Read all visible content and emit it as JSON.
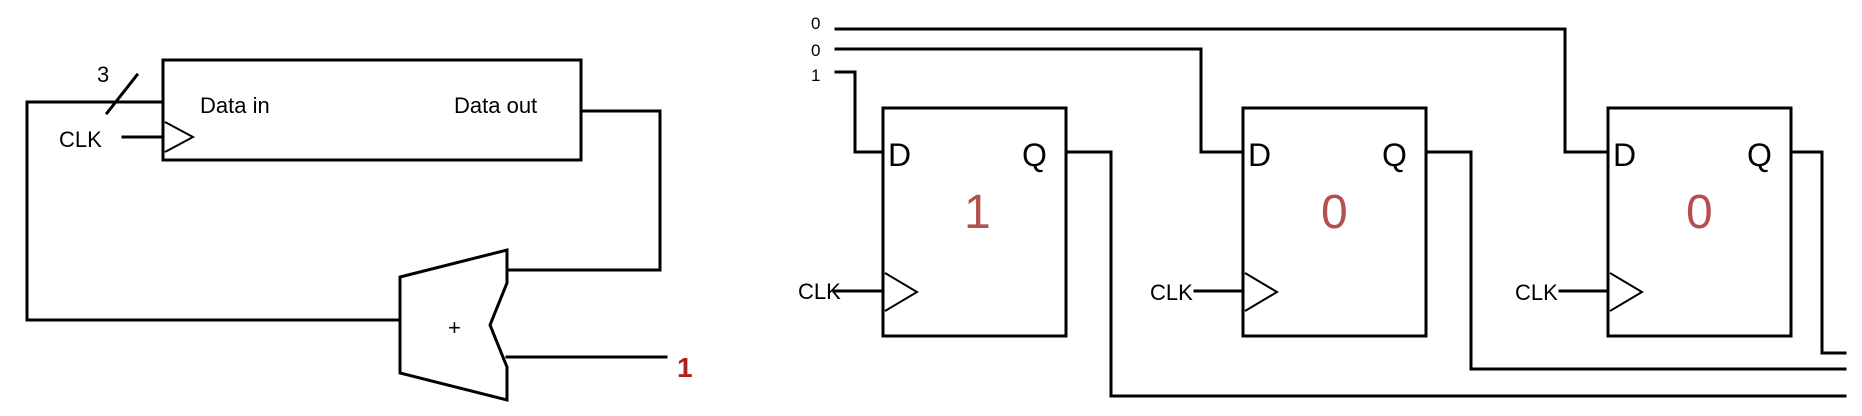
{
  "left": {
    "bus_width": "3",
    "clk_label": "CLK",
    "data_in_label": "Data in",
    "data_out_label": "Data out",
    "adder_symbol": "+",
    "increment_value": "1"
  },
  "right": {
    "inputs": [
      "0",
      "0",
      "1"
    ],
    "flipflops": [
      {
        "d_label": "D",
        "q_label": "Q",
        "clk_label": "CLK",
        "value": "1"
      },
      {
        "d_label": "D",
        "q_label": "Q",
        "clk_label": "CLK",
        "value": "0"
      },
      {
        "d_label": "D",
        "q_label": "Q",
        "clk_label": "CLK",
        "value": "0"
      }
    ]
  },
  "colors": {
    "state_value": "#b3504f",
    "increment_value": "#b01f1f"
  }
}
